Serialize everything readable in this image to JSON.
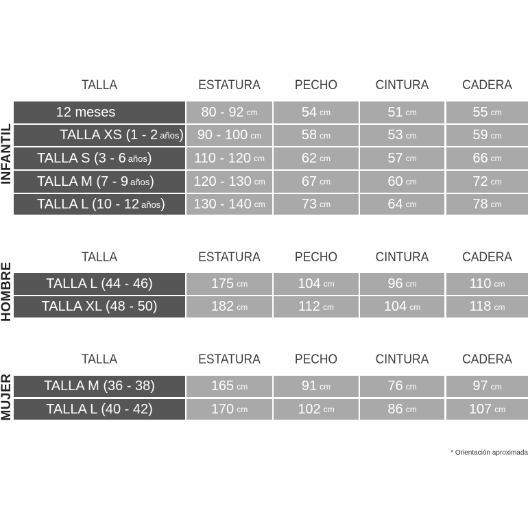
{
  "colors": {
    "label_bg": "#565656",
    "value_bg": "#a9a9a9",
    "text": "#ffffff"
  },
  "headers": [
    "TALLA",
    "ESTATURA",
    "PECHO",
    "CINTURA",
    "CADERA"
  ],
  "unit": "cm",
  "sections": [
    {
      "name": "INFANTIL",
      "rows": [
        {
          "label": "12 meses",
          "label_small": "",
          "label_end": "",
          "values": [
            "80 - 92",
            "54",
            "51",
            "55"
          ]
        },
        {
          "label": "TALLA XS (1 - 2",
          "label_small": "años",
          "label_end": ")",
          "values": [
            "90 - 100",
            "58",
            "53",
            "59"
          ]
        },
        {
          "label": "TALLA S (3 - 6",
          "label_small": "años",
          "label_end": ")",
          "values": [
            "110 - 120",
            "62",
            "57",
            "66"
          ]
        },
        {
          "label": "TALLA M (7 - 9",
          "label_small": "años",
          "label_end": ")",
          "values": [
            "120 - 130",
            "67",
            "60",
            "72"
          ]
        },
        {
          "label": "TALLA L (10 - 12",
          "label_small": "años",
          "label_end": ")",
          "values": [
            "130 - 140",
            "73",
            "64",
            "78"
          ]
        }
      ]
    },
    {
      "name": "HOMBRE",
      "rows": [
        {
          "label": "TALLA L (44 - 46)",
          "label_small": "",
          "label_end": "",
          "values": [
            "175",
            "104",
            "96",
            "110"
          ]
        },
        {
          "label": "TALLA XL (48 - 50)",
          "label_small": "",
          "label_end": "",
          "values": [
            "182",
            "112",
            "104",
            "118"
          ]
        }
      ]
    },
    {
      "name": "MUJER",
      "rows": [
        {
          "label": "TALLA M (36 - 38)",
          "label_small": "",
          "label_end": "",
          "values": [
            "165",
            "91",
            "76",
            "97"
          ]
        },
        {
          "label": "TALLA L (40 - 42)",
          "label_small": "",
          "label_end": "",
          "values": [
            "170",
            "102",
            "86",
            "107"
          ]
        }
      ]
    }
  ],
  "footnote": "* Orientación aproximada"
}
